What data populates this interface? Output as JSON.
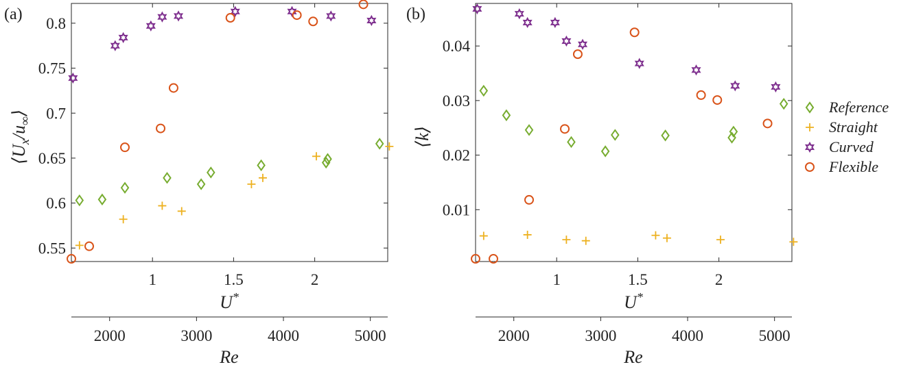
{
  "colors": {
    "reference": "#77AC30",
    "straight": "#EDB120",
    "curved": "#7E2F8E",
    "flexible": "#D95319",
    "axis": "#262626"
  },
  "chart_data": [
    {
      "type": "scatter",
      "panel_label": "(a)",
      "xlabel": "U*",
      "ylabel": "⟨U_x/u_∞⟩",
      "xlim": [
        0.5,
        2.45
      ],
      "ylim": [
        0.535,
        0.822
      ],
      "x_ticks": [
        {
          "value": 1,
          "label": "1"
        },
        {
          "value": 1.5,
          "label": "1.5"
        },
        {
          "value": 2,
          "label": "2"
        }
      ],
      "y_ticks": [
        {
          "value": 0.55,
          "label": "0.55"
        },
        {
          "value": 0.6,
          "label": "0.6"
        },
        {
          "value": 0.65,
          "label": "0.65"
        },
        {
          "value": 0.7,
          "label": "0.7"
        },
        {
          "value": 0.75,
          "label": "0.75"
        },
        {
          "value": 0.8,
          "label": "0.8"
        }
      ],
      "secondary_xlabel": "Re",
      "secondary_xlim": [
        1560,
        5200
      ],
      "secondary_x_ticks": [
        {
          "value": 2000,
          "label": "2000"
        },
        {
          "value": 3000,
          "label": "3000"
        },
        {
          "value": 4000,
          "label": "4000"
        },
        {
          "value": 5000,
          "label": "5000"
        }
      ],
      "series": [
        {
          "name": "Reference",
          "marker": "diamond",
          "color_key": "reference",
          "x": [
            0.55,
            0.69,
            0.83,
            1.09,
            1.3,
            1.36,
            1.67,
            2.07,
            2.08,
            2.4
          ],
          "y": [
            0.603,
            0.604,
            0.617,
            0.628,
            0.621,
            0.634,
            0.642,
            0.645,
            0.649,
            0.666
          ]
        },
        {
          "name": "Straight",
          "marker": "plus",
          "color_key": "straight",
          "x": [
            0.55,
            0.82,
            1.06,
            1.18,
            1.61,
            1.68,
            2.01,
            2.46
          ],
          "y": [
            0.553,
            0.582,
            0.597,
            0.591,
            0.621,
            0.628,
            0.652,
            0.663
          ]
        },
        {
          "name": "Curved",
          "marker": "star",
          "color_key": "curved",
          "x": [
            0.51,
            0.77,
            0.82,
            0.99,
            1.06,
            1.16,
            1.51,
            1.86,
            2.1,
            2.35
          ],
          "y": [
            0.739,
            0.775,
            0.784,
            0.797,
            0.807,
            0.808,
            0.813,
            0.813,
            0.808,
            0.803
          ]
        },
        {
          "name": "Flexible",
          "marker": "circle",
          "color_key": "flexible",
          "x": [
            0.5,
            0.61,
            0.83,
            1.05,
            1.13,
            1.48,
            1.89,
            1.99,
            2.3
          ],
          "y": [
            0.538,
            0.552,
            0.662,
            0.683,
            0.728,
            0.806,
            0.809,
            0.802,
            0.821
          ]
        }
      ]
    },
    {
      "type": "scatter",
      "panel_label": "(b)",
      "xlabel": "U*",
      "ylabel": "⟨k⟩",
      "xlim": [
        0.5,
        2.45
      ],
      "ylim": [
        0.0005,
        0.0478
      ],
      "x_ticks": [
        {
          "value": 1,
          "label": "1"
        },
        {
          "value": 1.5,
          "label": "1.5"
        },
        {
          "value": 2,
          "label": "2"
        }
      ],
      "y_ticks": [
        {
          "value": 0.01,
          "label": "0.01"
        },
        {
          "value": 0.02,
          "label": "0.02"
        },
        {
          "value": 0.03,
          "label": "0.03"
        },
        {
          "value": 0.04,
          "label": "0.04"
        }
      ],
      "secondary_xlabel": "Re",
      "secondary_xlim": [
        1560,
        5200
      ],
      "secondary_x_ticks": [
        {
          "value": 2000,
          "label": "2000"
        },
        {
          "value": 3000,
          "label": "3000"
        },
        {
          "value": 4000,
          "label": "4000"
        },
        {
          "value": 5000,
          "label": "5000"
        }
      ],
      "series": [
        {
          "name": "Reference",
          "marker": "diamond",
          "color_key": "reference",
          "x": [
            0.55,
            0.69,
            0.83,
            1.09,
            1.3,
            1.36,
            1.67,
            2.08,
            2.09,
            2.4
          ],
          "y": [
            0.0318,
            0.0273,
            0.0246,
            0.0224,
            0.0207,
            0.0237,
            0.0236,
            0.0232,
            0.0243,
            0.0294
          ]
        },
        {
          "name": "Straight",
          "marker": "plus",
          "color_key": "straight",
          "x": [
            0.55,
            0.82,
            1.06,
            1.18,
            1.61,
            1.68,
            2.01,
            2.46
          ],
          "y": [
            0.0052,
            0.0054,
            0.0045,
            0.0043,
            0.0053,
            0.0048,
            0.0045,
            0.0041
          ]
        },
        {
          "name": "Curved",
          "marker": "star",
          "color_key": "curved",
          "x": [
            0.51,
            0.77,
            0.82,
            0.99,
            1.06,
            1.16,
            1.51,
            1.86,
            2.1,
            2.35
          ],
          "y": [
            0.0468,
            0.0459,
            0.0443,
            0.0443,
            0.0409,
            0.0403,
            0.0368,
            0.0356,
            0.0327,
            0.0325
          ]
        },
        {
          "name": "Flexible",
          "marker": "circle",
          "color_key": "flexible",
          "x": [
            0.5,
            0.61,
            0.83,
            1.05,
            1.13,
            1.48,
            1.89,
            1.99,
            2.3
          ],
          "y": [
            0.001,
            0.001,
            0.0118,
            0.0248,
            0.0385,
            0.0425,
            0.031,
            0.0301,
            0.0258
          ]
        }
      ]
    }
  ],
  "legend": {
    "placement": "right",
    "items": [
      {
        "label": "Reference",
        "marker": "diamond",
        "color_key": "reference"
      },
      {
        "label": "Straight",
        "marker": "plus",
        "color_key": "straight"
      },
      {
        "label": "Curved",
        "marker": "star",
        "color_key": "curved"
      },
      {
        "label": "Flexible",
        "marker": "circle",
        "color_key": "flexible"
      }
    ]
  }
}
